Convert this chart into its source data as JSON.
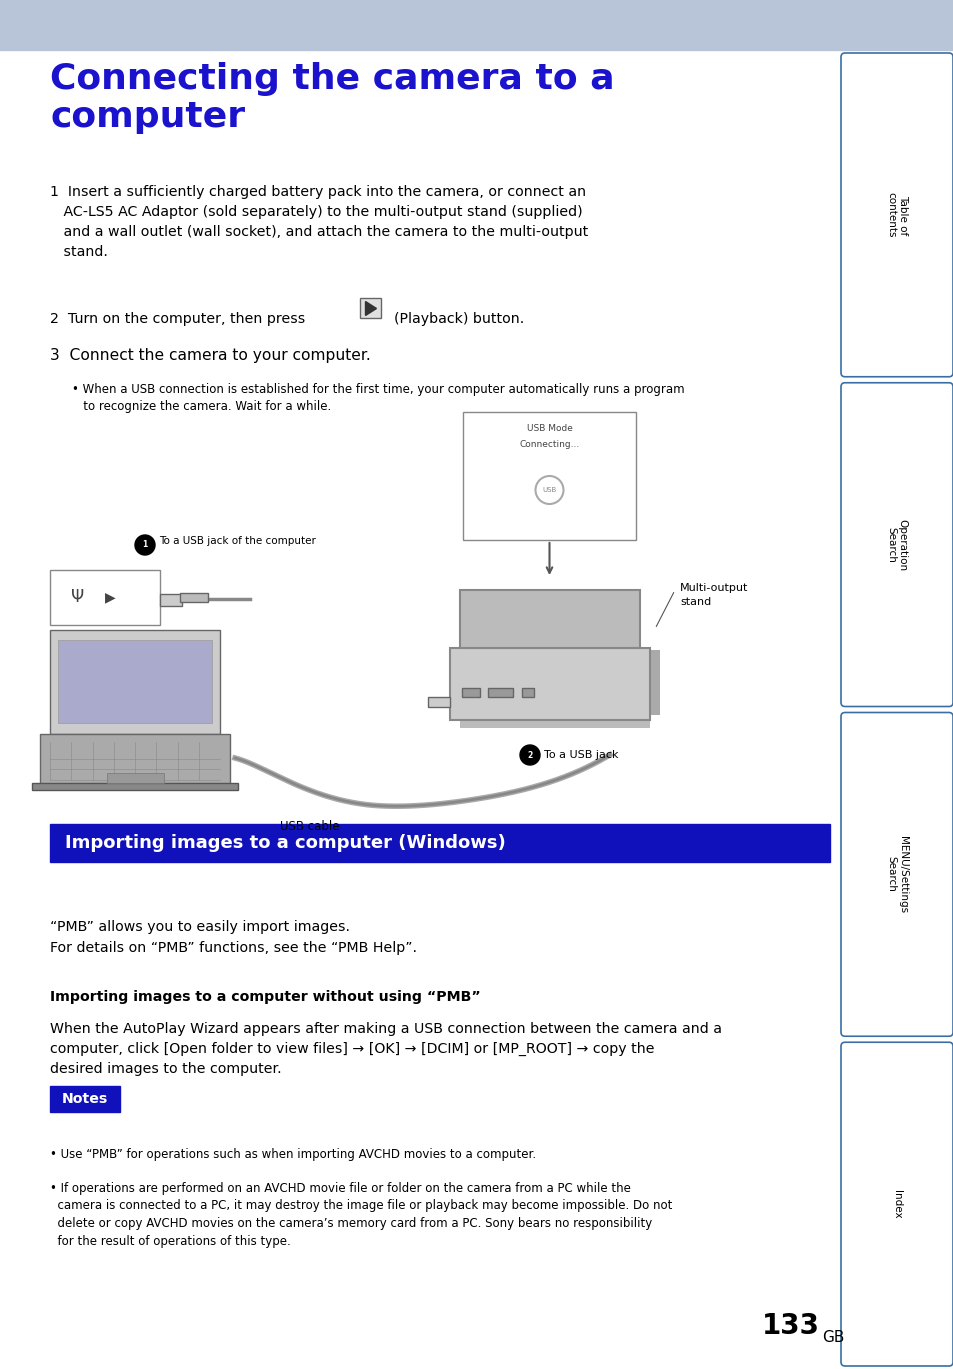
{
  "page_bg": "#ffffff",
  "header_bg": "#b8c4d8",
  "title_line1": "Connecting the camera to a",
  "title_line2": "computer",
  "title_color": "#1a12cc",
  "title_fontsize": 26,
  "body_color": "#000000",
  "sidebar_border_color": "#3a6ea5",
  "sidebar_labels": [
    "Table of\ncontents",
    "Operation\nSearch",
    "MENU/Settings\nSearch",
    "Index"
  ],
  "section_bar_color": "#1111bb",
  "section_bar_text": "Importing images to a computer (Windows)",
  "section_bar_text_color": "#ffffff",
  "notes_bar_color": "#1111bb",
  "notes_bar_text": "Notes",
  "notes_bar_text_color": "#ffffff",
  "page_number": "133",
  "page_number_suffix": "GB"
}
